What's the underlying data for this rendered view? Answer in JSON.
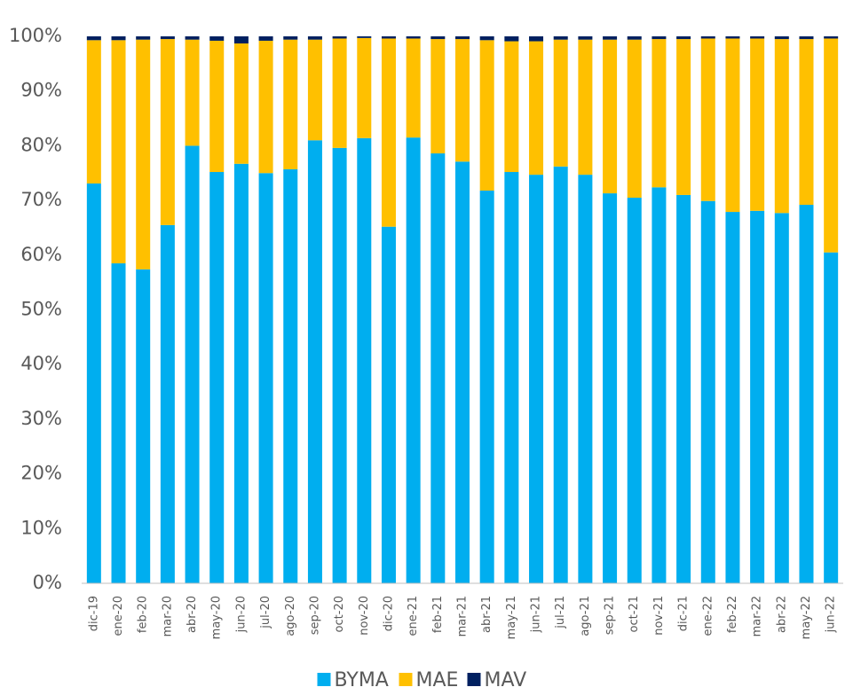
{
  "chart_data": {
    "type": "stacked_bar",
    "categories": [
      "dic-19",
      "ene-20",
      "feb-20",
      "mar-20",
      "abr-20",
      "may-20",
      "jun-20",
      "jul-20",
      "ago-20",
      "sep-20",
      "oct-20",
      "nov-20",
      "dic-20",
      "ene-21",
      "feb-21",
      "mar-21",
      "abr-21",
      "may-21",
      "jun-21",
      "jul-21",
      "ago-21",
      "sep-21",
      "oct-21",
      "nov-21",
      "dic-21",
      "ene-22",
      "feb-22",
      "mar-22",
      "abr-22",
      "may-22",
      "jun-22"
    ],
    "series": [
      {
        "name": "BYMA",
        "color": "#00aeef",
        "values": [
          73.1,
          58.5,
          57.4,
          65.5,
          80,
          75.2,
          76.7,
          75,
          75.7,
          81,
          79.6,
          81.4,
          65.2,
          81.5,
          78.6,
          77.1,
          71.8,
          75.2,
          74.7,
          76.2,
          74.7,
          71.3,
          70.5,
          72.4,
          71,
          69.9,
          67.9,
          68.1,
          67.7,
          69.2,
          60.5
        ]
      },
      {
        "name": "MAE",
        "color": "#ffc000",
        "values": [
          26.2,
          40.8,
          42,
          34,
          19.4,
          24,
          22,
          24.2,
          23.7,
          18.4,
          20,
          18.3,
          34.4,
          18.1,
          20.9,
          22.4,
          27.5,
          23.9,
          24.4,
          23.2,
          24.7,
          28.1,
          28.9,
          27.1,
          28.5,
          29.7,
          31.7,
          31.5,
          31.8,
          30.3,
          39.1
        ]
      },
      {
        "name": "MAV",
        "color": "#002060",
        "values": [
          0.7,
          0.7,
          0.6,
          0.5,
          0.6,
          0.8,
          1.3,
          0.8,
          0.6,
          0.6,
          0.4,
          0.3,
          0.4,
          0.4,
          0.5,
          0.5,
          0.7,
          0.9,
          0.9,
          0.6,
          0.6,
          0.6,
          0.6,
          0.5,
          0.5,
          0.4,
          0.4,
          0.4,
          0.5,
          0.5,
          0.4
        ]
      }
    ],
    "ylim": [
      0,
      100
    ],
    "yticks": [
      {
        "value": 0,
        "label": "0%"
      },
      {
        "value": 10,
        "label": "10%"
      },
      {
        "value": 20,
        "label": "20%"
      },
      {
        "value": 30,
        "label": "30%"
      },
      {
        "value": 40,
        "label": "40%"
      },
      {
        "value": 50,
        "label": "50%"
      },
      {
        "value": 60,
        "label": "60%"
      },
      {
        "value": 70,
        "label": "70%"
      },
      {
        "value": 80,
        "label": "80%"
      },
      {
        "value": 90,
        "label": "90%"
      },
      {
        "value": 100,
        "label": "100%"
      }
    ],
    "grid": false,
    "legend": "bottom"
  }
}
